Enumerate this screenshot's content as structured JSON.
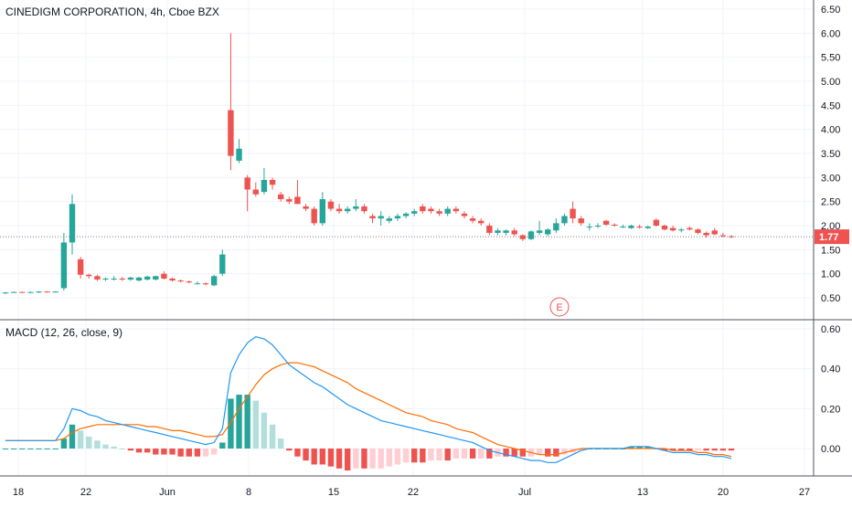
{
  "header": {
    "title": "CINEDIGM CORPORATION, 4h, Cboe BZX"
  },
  "macd_panel": {
    "label": "MACD (12, 26, close, 9)"
  },
  "colors": {
    "up": "#26a69a",
    "down": "#ef5350",
    "hist_up_strong": "#26a69a",
    "hist_up_weak": "#b2dfdb",
    "hist_down_strong": "#ef5350",
    "hist_down_weak": "#ffcdd2",
    "macd_line": "#2196f3",
    "signal_line": "#ff6d00",
    "price_tag": "#ef5350",
    "grid": "#f0f3fa",
    "axis_text": "#131722",
    "earnings_marker": "#ef5350"
  },
  "price_axis": {
    "ticks": [
      "6.50",
      "6.00",
      "5.50",
      "5.00",
      "4.50",
      "4.00",
      "3.50",
      "3.00",
      "2.50",
      "2.00",
      "1.50",
      "1.00",
      "0.50"
    ],
    "last_price": "1.77"
  },
  "macd_axis": {
    "ticks": [
      "0.60",
      "0.40",
      "0.20",
      "0.00"
    ]
  },
  "time_axis": {
    "ticks": [
      "18",
      "22",
      "Jun",
      "8",
      "15",
      "22",
      "Jul",
      "13",
      "20",
      "27"
    ]
  },
  "earnings_marker": {
    "label": "E"
  },
  "chart_data": {
    "type": "candlestick",
    "title": "CINEDIGM CORPORATION, 4h, Cboe BZX",
    "price_range": [
      0.25,
      6.6
    ],
    "macd_range": [
      -0.1,
      0.62
    ],
    "x_labels": [
      "18",
      "22",
      "Jun",
      "8",
      "15",
      "22",
      "Jul",
      "13",
      "20",
      "27"
    ],
    "candles": [
      [
        0.6,
        0.62,
        0.58,
        0.61
      ],
      [
        0.61,
        0.63,
        0.6,
        0.62
      ],
      [
        0.62,
        0.63,
        0.6,
        0.61
      ],
      [
        0.61,
        0.63,
        0.6,
        0.62
      ],
      [
        0.62,
        0.64,
        0.6,
        0.63
      ],
      [
        0.63,
        0.64,
        0.61,
        0.62
      ],
      [
        0.62,
        0.64,
        0.61,
        0.63
      ],
      [
        0.7,
        1.85,
        0.65,
        1.65
      ],
      [
        1.65,
        2.65,
        1.4,
        2.45
      ],
      [
        1.3,
        1.35,
        0.9,
        0.98
      ],
      [
        0.98,
        1.0,
        0.9,
        0.95
      ],
      [
        0.95,
        0.98,
        0.85,
        0.88
      ],
      [
        0.88,
        0.92,
        0.85,
        0.9
      ],
      [
        0.9,
        0.95,
        0.86,
        0.9
      ],
      [
        0.9,
        0.93,
        0.85,
        0.88
      ],
      [
        0.88,
        0.94,
        0.85,
        0.92
      ],
      [
        0.86,
        0.94,
        0.84,
        0.92
      ],
      [
        0.88,
        0.96,
        0.86,
        0.94
      ],
      [
        0.88,
        0.96,
        0.86,
        0.95
      ],
      [
        1.0,
        1.05,
        0.88,
        0.9
      ],
      [
        0.9,
        0.92,
        0.84,
        0.86
      ],
      [
        0.86,
        0.88,
        0.82,
        0.84
      ],
      [
        0.84,
        0.86,
        0.8,
        0.82
      ],
      [
        0.8,
        0.84,
        0.78,
        0.8
      ],
      [
        0.8,
        0.82,
        0.76,
        0.78
      ],
      [
        0.76,
        0.98,
        0.74,
        0.95
      ],
      [
        1.0,
        1.5,
        0.95,
        1.4
      ],
      [
        4.4,
        6.0,
        3.15,
        3.45
      ],
      [
        3.35,
        3.8,
        3.3,
        3.6
      ],
      [
        3.0,
        3.05,
        2.3,
        2.75
      ],
      [
        2.75,
        2.9,
        2.6,
        2.65
      ],
      [
        2.7,
        3.2,
        2.65,
        2.95
      ],
      [
        2.95,
        3.0,
        2.75,
        2.85
      ],
      [
        2.65,
        2.7,
        2.5,
        2.55
      ],
      [
        2.55,
        2.6,
        2.45,
        2.5
      ],
      [
        2.6,
        2.95,
        2.5,
        2.45
      ],
      [
        2.4,
        2.45,
        2.3,
        2.35
      ],
      [
        2.35,
        2.4,
        2.0,
        2.05
      ],
      [
        2.05,
        2.7,
        2.0,
        2.55
      ],
      [
        2.5,
        2.55,
        2.3,
        2.35
      ],
      [
        2.35,
        2.45,
        2.25,
        2.3
      ],
      [
        2.3,
        2.4,
        2.25,
        2.35
      ],
      [
        2.35,
        2.55,
        2.3,
        2.4
      ],
      [
        2.4,
        2.45,
        2.25,
        2.3
      ],
      [
        2.2,
        2.25,
        2.05,
        2.15
      ],
      [
        2.15,
        2.3,
        2.0,
        2.2
      ],
      [
        2.1,
        2.2,
        2.05,
        2.15
      ],
      [
        2.15,
        2.25,
        2.1,
        2.2
      ],
      [
        2.2,
        2.28,
        2.15,
        2.25
      ],
      [
        2.25,
        2.35,
        2.2,
        2.3
      ],
      [
        2.4,
        2.45,
        2.25,
        2.3
      ],
      [
        2.35,
        2.4,
        2.25,
        2.3
      ],
      [
        2.3,
        2.35,
        2.2,
        2.25
      ],
      [
        2.25,
        2.4,
        2.2,
        2.35
      ],
      [
        2.35,
        2.4,
        2.25,
        2.3
      ],
      [
        2.25,
        2.3,
        2.15,
        2.2
      ],
      [
        2.15,
        2.2,
        2.05,
        2.1
      ],
      [
        2.1,
        2.15,
        2.0,
        2.05
      ],
      [
        2.0,
        2.05,
        1.8,
        1.85
      ],
      [
        1.85,
        1.95,
        1.8,
        1.9
      ],
      [
        1.85,
        1.92,
        1.8,
        1.9
      ],
      [
        1.9,
        1.95,
        1.78,
        1.82
      ],
      [
        1.8,
        1.82,
        1.68,
        1.72
      ],
      [
        1.72,
        1.9,
        1.7,
        1.88
      ],
      [
        1.85,
        2.1,
        1.8,
        1.9
      ],
      [
        1.82,
        1.95,
        1.78,
        1.92
      ],
      [
        1.9,
        2.15,
        1.85,
        2.05
      ],
      [
        2.05,
        2.25,
        2.0,
        2.2
      ],
      [
        2.35,
        2.5,
        2.05,
        2.15
      ],
      [
        2.15,
        2.2,
        2.0,
        2.05
      ],
      [
        1.98,
        2.05,
        1.9,
        1.98
      ],
      [
        2.0,
        2.05,
        1.95,
        2.0
      ],
      [
        2.1,
        2.12,
        2.0,
        2.02
      ],
      [
        2.02,
        2.05,
        1.98,
        2.0
      ],
      [
        1.98,
        2.02,
        1.95,
        1.98
      ],
      [
        1.95,
        2.02,
        1.93,
        2.0
      ],
      [
        1.98,
        2.02,
        1.94,
        1.96
      ],
      [
        1.95,
        2.0,
        1.93,
        1.98
      ],
      [
        2.12,
        2.15,
        1.98,
        2.0
      ],
      [
        2.0,
        2.02,
        1.9,
        1.92
      ],
      [
        1.95,
        2.0,
        1.88,
        1.9
      ],
      [
        1.9,
        1.95,
        1.86,
        1.92
      ],
      [
        1.95,
        1.98,
        1.9,
        1.92
      ],
      [
        1.92,
        1.94,
        1.82,
        1.85
      ],
      [
        1.85,
        1.88,
        1.75,
        1.8
      ],
      [
        1.9,
        1.95,
        1.8,
        1.82
      ],
      [
        1.8,
        1.85,
        1.76,
        1.78
      ],
      [
        1.78,
        1.8,
        1.74,
        1.77
      ]
    ],
    "macd": [
      0.04,
      0.04,
      0.04,
      0.04,
      0.04,
      0.04,
      0.04,
      0.1,
      0.2,
      0.19,
      0.17,
      0.16,
      0.14,
      0.13,
      0.12,
      0.11,
      0.1,
      0.09,
      0.08,
      0.07,
      0.06,
      0.05,
      0.04,
      0.03,
      0.02,
      0.03,
      0.1,
      0.38,
      0.47,
      0.53,
      0.56,
      0.55,
      0.52,
      0.47,
      0.42,
      0.39,
      0.36,
      0.33,
      0.31,
      0.28,
      0.25,
      0.22,
      0.2,
      0.18,
      0.16,
      0.14,
      0.13,
      0.12,
      0.11,
      0.1,
      0.09,
      0.08,
      0.07,
      0.06,
      0.05,
      0.04,
      0.03,
      0.01,
      -0.01,
      -0.02,
      -0.03,
      -0.04,
      -0.05,
      -0.06,
      -0.06,
      -0.07,
      -0.07,
      -0.05,
      -0.03,
      -0.01,
      0.0,
      0.0,
      0.0,
      0.0,
      0.0,
      0.01,
      0.01,
      0.01,
      0.0,
      -0.01,
      -0.02,
      -0.02,
      -0.02,
      -0.03,
      -0.03,
      -0.04,
      -0.04,
      -0.05
    ],
    "signal": [
      0.04,
      0.04,
      0.04,
      0.04,
      0.04,
      0.04,
      0.04,
      0.05,
      0.08,
      0.1,
      0.11,
      0.12,
      0.12,
      0.12,
      0.12,
      0.12,
      0.12,
      0.11,
      0.11,
      0.1,
      0.09,
      0.09,
      0.08,
      0.07,
      0.06,
      0.06,
      0.07,
      0.13,
      0.2,
      0.26,
      0.32,
      0.37,
      0.4,
      0.42,
      0.43,
      0.43,
      0.42,
      0.41,
      0.39,
      0.37,
      0.35,
      0.33,
      0.3,
      0.28,
      0.26,
      0.24,
      0.22,
      0.2,
      0.18,
      0.17,
      0.16,
      0.14,
      0.13,
      0.12,
      0.1,
      0.09,
      0.08,
      0.06,
      0.04,
      0.02,
      0.01,
      0.0,
      -0.01,
      -0.02,
      -0.03,
      -0.03,
      -0.03,
      -0.02,
      -0.01,
      0.0,
      0.0,
      0.0,
      0.0,
      0.0,
      0.0,
      0.0,
      0.0,
      0.0,
      0.0,
      0.0,
      -0.01,
      -0.01,
      -0.01,
      -0.02,
      -0.02,
      -0.03,
      -0.03,
      -0.04
    ]
  }
}
